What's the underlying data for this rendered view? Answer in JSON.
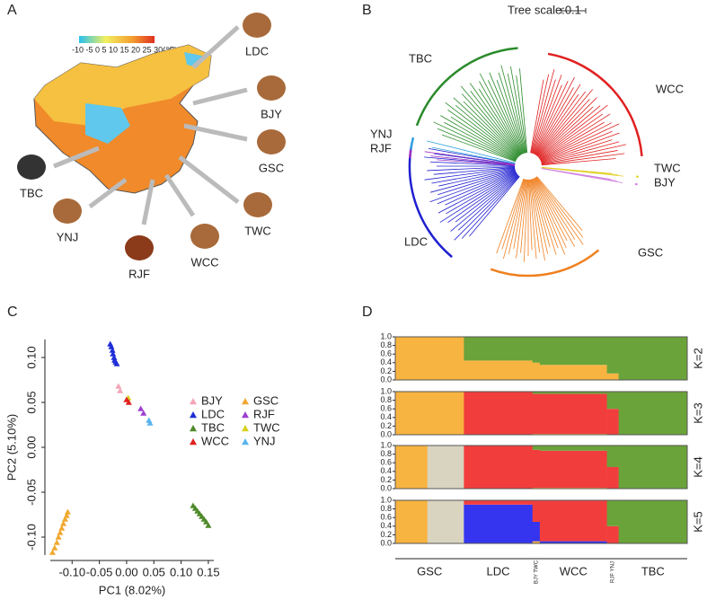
{
  "panels": {
    "A": {
      "letter": "A",
      "colorbar_label": "-10 -5  0  5 10 15 20 25 30(℃)",
      "breeds": [
        "LDC",
        "BJY",
        "GSC",
        "TWC",
        "WCC",
        "RJF",
        "YNJ",
        "TBC"
      ]
    },
    "B": {
      "letter": "B",
      "scale_label": "Tree scale:0.1",
      "clades": [
        "TBC",
        "WCC",
        "YNJ",
        "RJF",
        "TWC",
        "BJY",
        "LDC",
        "GSC"
      ]
    }
  },
  "chart_data": [
    {
      "type": "scatter",
      "panel": "C",
      "xlabel": "PC1 (8.02%)",
      "ylabel": "PC2 (5.10%)",
      "xlim": [
        -0.14,
        0.16
      ],
      "ylim": [
        -0.12,
        0.12
      ],
      "xticks": [
        {
          "value": -0.1,
          "label": "-0.10"
        },
        {
          "value": -0.05,
          "label": "-0.05"
        },
        {
          "value": 0,
          "label": "0.00"
        },
        {
          "value": 0.05,
          "label": "0.05"
        },
        {
          "value": 0.1,
          "label": "0.10"
        },
        {
          "value": 0.15,
          "label": "0.15"
        }
      ],
      "yticks": [
        {
          "value": -0.1,
          "label": "-0.10"
        },
        {
          "value": -0.05,
          "label": "-0.05"
        },
        {
          "value": 0,
          "label": "0.00"
        },
        {
          "value": 0.05,
          "label": "0.05"
        },
        {
          "value": 0.1,
          "label": "0.10"
        }
      ],
      "series": [
        {
          "name": "BJY",
          "color": "#f4a6b7",
          "x": [
            -0.015,
            -0.012
          ],
          "values": [
            0.068,
            0.063
          ]
        },
        {
          "name": "GSC",
          "color": "#f0a830",
          "x": [
            -0.136,
            -0.132,
            -0.128,
            -0.125,
            -0.122,
            -0.119,
            -0.116,
            -0.113,
            -0.11,
            -0.108
          ],
          "values": [
            -0.117,
            -0.112,
            -0.106,
            -0.1,
            -0.095,
            -0.09,
            -0.085,
            -0.08,
            -0.076,
            -0.072
          ]
        },
        {
          "name": "LDC",
          "color": "#1f2ed6",
          "x": [
            -0.03,
            -0.028,
            -0.026,
            -0.025,
            -0.023,
            -0.022,
            -0.02,
            -0.018
          ],
          "values": [
            0.115,
            0.112,
            0.108,
            0.104,
            0.1,
            0.097,
            0.095,
            0.093
          ]
        },
        {
          "name": "RJF",
          "color": "#9b3fd1",
          "x": [
            0.026,
            0.031
          ],
          "values": [
            0.043,
            0.038
          ]
        },
        {
          "name": "TBC",
          "color": "#4e8a2a",
          "x": [
            0.122,
            0.126,
            0.13,
            0.134,
            0.138,
            0.142,
            0.146,
            0.15
          ],
          "values": [
            -0.065,
            -0.068,
            -0.071,
            -0.074,
            -0.077,
            -0.08,
            -0.083,
            -0.087
          ]
        },
        {
          "name": "TWC",
          "color": "#d8d020",
          "x": [
            0.003
          ],
          "values": [
            0.055
          ]
        },
        {
          "name": "WCC",
          "color": "#e02020",
          "x": [
            0.0,
            0.004
          ],
          "values": [
            0.053,
            0.05
          ]
        },
        {
          "name": "YNJ",
          "color": "#5ab4ec",
          "x": [
            0.041,
            0.043
          ],
          "values": [
            0.03,
            0.027
          ]
        }
      ]
    },
    {
      "type": "stacked-bar",
      "panel": "D",
      "categories": [
        "GSC",
        null,
        "LDC",
        "BJY TWC",
        "WCC",
        "RJF YNJ",
        "TBC"
      ],
      "ylim": [
        0,
        1
      ],
      "yticks": [
        {
          "value": 0,
          "label": "0.0"
        },
        0.2,
        0.4,
        0.6,
        0.8,
        {
          "value": 1,
          "label": "1.0"
        }
      ],
      "rows": [
        {
          "label": "K=2",
          "series": [
            {
              "color": "#f8b440",
              "values": [
                1,
                1,
                0.45,
                0.4,
                0.35,
                0.15,
                0
              ]
            },
            {
              "color": "#6aa33a",
              "values": [
                0,
                0,
                0.55,
                0.6,
                0.65,
                0.85,
                1
              ]
            }
          ]
        },
        {
          "label": "K=3",
          "series": [
            {
              "color": "#f8b440",
              "values": [
                1,
                1,
                0,
                0.02,
                0.02,
                0,
                0
              ]
            },
            {
              "color": "#f23d3d",
              "values": [
                0,
                0,
                1,
                0.93,
                0.93,
                0.6,
                0
              ]
            },
            {
              "color": "#6aa33a",
              "values": [
                0,
                0,
                0,
                0.05,
                0.05,
                0.4,
                1
              ]
            }
          ]
        },
        {
          "label": "K=4",
          "series": [
            {
              "color": "#f8b440",
              "values": [
                1,
                0,
                0,
                0.02,
                0.02,
                0,
                0
              ]
            },
            {
              "color": "#d9d4c0",
              "values": [
                0,
                1,
                0,
                0,
                0,
                0,
                0
              ]
            },
            {
              "color": "#f23d3d",
              "values": [
                0,
                0,
                1,
                0.88,
                0.86,
                0.5,
                0
              ]
            },
            {
              "color": "#6aa33a",
              "values": [
                0,
                0,
                0,
                0.1,
                0.12,
                0.5,
                1
              ]
            }
          ]
        },
        {
          "label": "K=5",
          "series": [
            {
              "color": "#f8b440",
              "values": [
                1,
                0,
                0,
                0.05,
                0,
                0,
                0
              ]
            },
            {
              "color": "#d9d4c0",
              "values": [
                0,
                1,
                0,
                0,
                0,
                0,
                0
              ]
            },
            {
              "color": "#3535f0",
              "values": [
                0,
                0,
                0.9,
                0.45,
                0.05,
                0,
                0
              ]
            },
            {
              "color": "#f23d3d",
              "values": [
                0,
                0,
                0.1,
                0.5,
                0.95,
                0.4,
                0
              ]
            },
            {
              "color": "#6aa33a",
              "values": [
                0,
                0,
                0,
                0,
                0,
                0.6,
                1
              ]
            }
          ]
        }
      ]
    }
  ]
}
